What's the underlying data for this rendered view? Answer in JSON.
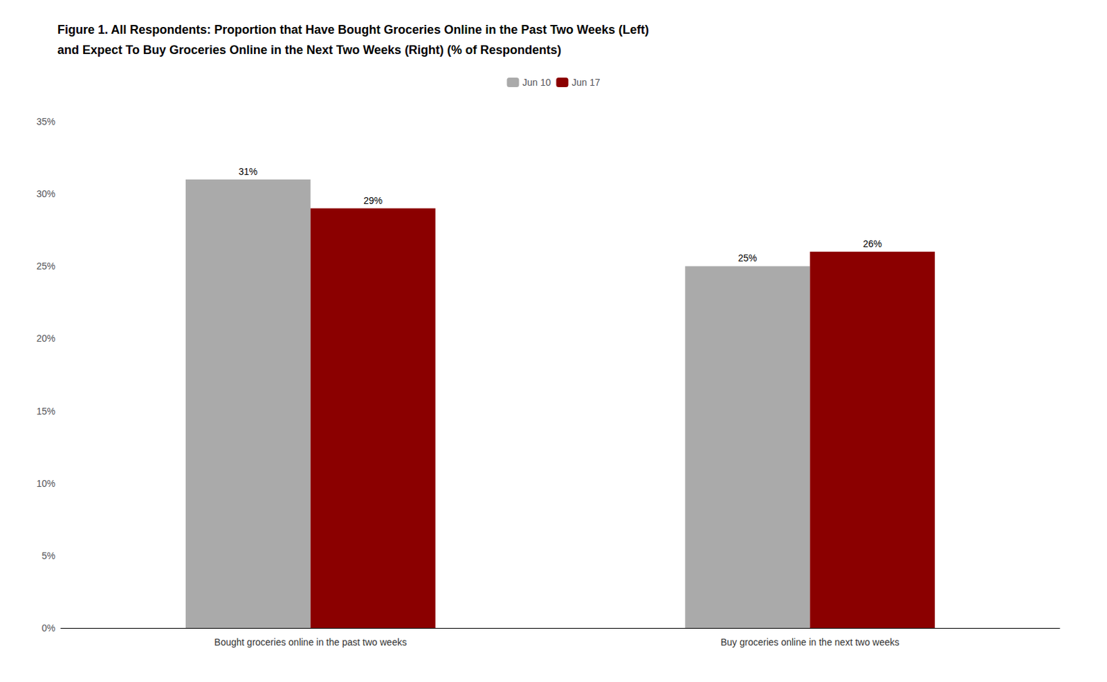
{
  "chart_data": {
    "type": "bar",
    "title": "Figure 1. All Respondents: Proportion that Have Bought Groceries Online in the Past Two Weeks (Left)\nand Expect To Buy Groceries Online in the Next Two Weeks (Right) (% of Respondents)",
    "categories": [
      "Bought groceries online in the past two weeks",
      "Buy groceries online in the next two weeks"
    ],
    "series": [
      {
        "name": "Jun 10",
        "color": "#AAAAAA",
        "values": [
          0.31,
          0.25
        ],
        "value_labels": [
          "31%",
          "25%"
        ]
      },
      {
        "name": "Jun 17",
        "color": "#8B0000",
        "values": [
          0.29,
          0.26
        ],
        "value_labels": [
          "29%",
          "26%"
        ]
      }
    ],
    "ylim": [
      0,
      0.35
    ],
    "yticks": [
      {
        "value": 0,
        "label": "0%"
      },
      {
        "value": 0.05,
        "label": "5%"
      },
      {
        "value": 0.1,
        "label": "10%"
      },
      {
        "value": 0.15,
        "label": "15%"
      },
      {
        "value": 0.2,
        "label": "20%"
      },
      {
        "value": 0.25,
        "label": "25%"
      },
      {
        "value": 0.3,
        "label": "30%"
      },
      {
        "value": 0.35,
        "label": "35%"
      }
    ],
    "grid": false,
    "legend": "top",
    "data_labels": true
  }
}
